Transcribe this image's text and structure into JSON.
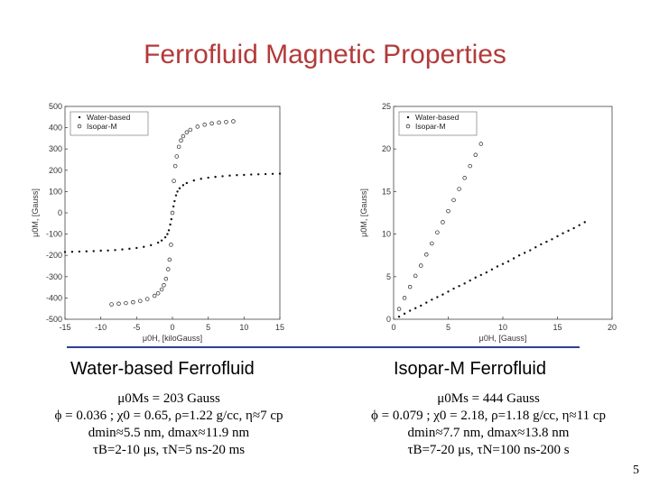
{
  "slide": {
    "title": "Ferrofluid Magnetic Properties",
    "page_number": "5"
  },
  "left": {
    "caption": "Water-based Ferrofluid",
    "params": [
      "μ0Ms = 203 Gauss",
      "ϕ = 0.036 ; χ0 = 0.65, ρ=1.22 g/cc, η≈7 cp",
      "dmin≈5.5 nm, dmax≈11.9 nm",
      "τB=2-10 μs, τN=5 ns-20 ms"
    ]
  },
  "right": {
    "caption": "Isopar-M Ferrofluid",
    "params": [
      "μ0Ms = 444 Gauss",
      "ϕ = 0.079 ; χ0 = 2.18, ρ=1.18 g/cc, η≈11 cp",
      "dmin≈7.7 nm, dmax≈13.8 nm",
      "τB=7-20 μs, τN=100 ns-200 s"
    ]
  },
  "chart_data": [
    {
      "type": "scatter",
      "xlabel": "μ0H, [kiloGauss]",
      "ylabel": "μ0M, [Gauss]",
      "xlim": [
        -15,
        15
      ],
      "ylim": [
        -500,
        500
      ],
      "xticks": [
        "-15",
        "-10",
        "-5",
        "0",
        "5",
        "10",
        "15"
      ],
      "yticks": [
        "500",
        "400",
        "300",
        "200",
        "100",
        "0",
        "-100",
        "-200",
        "-300",
        "-400",
        "-500"
      ],
      "legend": "top-left",
      "series": [
        {
          "name": "Water-based",
          "marker": "dot",
          "x": [
            -15,
            -14,
            -13,
            -12,
            -11,
            -10,
            -9,
            -8,
            -7,
            -6,
            -5,
            -4,
            -3,
            -2,
            -1.5,
            -1,
            -0.7,
            -0.5,
            -0.3,
            -0.15,
            0,
            0.15,
            0.3,
            0.5,
            0.7,
            1,
            1.5,
            2,
            3,
            4,
            5,
            6,
            7,
            8,
            9,
            10,
            11,
            12,
            13,
            14,
            15
          ],
          "y": [
            -184,
            -183,
            -182,
            -181,
            -180,
            -178,
            -177,
            -175,
            -172,
            -169,
            -165,
            -160,
            -152,
            -140,
            -130,
            -115,
            -100,
            -82,
            -55,
            -30,
            0,
            30,
            55,
            82,
            100,
            115,
            130,
            140,
            152,
            160,
            165,
            169,
            172,
            175,
            177,
            178,
            180,
            181,
            182,
            183,
            184
          ]
        },
        {
          "name": "Isopar-M",
          "marker": "circle",
          "x": [
            -8.5,
            -7.5,
            -6.5,
            -5.5,
            -4.5,
            -3.5,
            -2.5,
            -2,
            -1.5,
            -1.2,
            -0.9,
            -0.6,
            -0.4,
            -0.2,
            0,
            0.2,
            0.4,
            0.6,
            0.9,
            1.2,
            1.5,
            2,
            2.5,
            3.5,
            4.5,
            5.5,
            6.5,
            7.5,
            8.5
          ],
          "y": [
            -430,
            -427,
            -424,
            -420,
            -414,
            -405,
            -390,
            -378,
            -360,
            -340,
            -310,
            -265,
            -220,
            -150,
            0,
            150,
            220,
            265,
            310,
            340,
            360,
            378,
            390,
            405,
            414,
            420,
            424,
            427,
            430
          ]
        }
      ]
    },
    {
      "type": "scatter",
      "xlabel": "μ0H, [Gauss]",
      "ylabel": "μ0M, [Gauss]",
      "xlim": [
        0,
        20
      ],
      "ylim": [
        0,
        25
      ],
      "xticks": [
        "0",
        "5",
        "10",
        "15",
        "20"
      ],
      "yticks": [
        "25",
        "20",
        "15",
        "10",
        "5",
        "0"
      ],
      "legend": "top-left",
      "series": [
        {
          "name": "Water-based",
          "marker": "dot",
          "x": [
            0.5,
            1,
            1.5,
            2,
            2.5,
            3,
            3.5,
            4,
            4.5,
            5,
            5.5,
            6,
            6.5,
            7,
            7.5,
            8,
            8.5,
            9,
            9.5,
            10,
            10.5,
            11,
            11.5,
            12,
            12.5,
            13,
            13.5,
            14,
            14.5,
            15,
            15.5,
            16,
            16.5,
            17,
            17.5
          ],
          "y": [
            0.3,
            0.65,
            1.0,
            1.3,
            1.6,
            1.95,
            2.3,
            2.6,
            2.9,
            3.25,
            3.6,
            3.9,
            4.2,
            4.55,
            4.9,
            5.2,
            5.5,
            5.85,
            6.2,
            6.5,
            6.8,
            7.15,
            7.5,
            7.8,
            8.1,
            8.45,
            8.8,
            9.1,
            9.4,
            9.75,
            10.1,
            10.4,
            10.7,
            11.05,
            11.4
          ]
        },
        {
          "name": "Isopar-M",
          "marker": "circle",
          "x": [
            0.5,
            1,
            1.5,
            2,
            2.5,
            3,
            3.5,
            4,
            4.5,
            5,
            5.5,
            6,
            6.5,
            7,
            7.5,
            8
          ],
          "y": [
            1.2,
            2.5,
            3.8,
            5.1,
            6.3,
            7.6,
            8.9,
            10.2,
            11.4,
            12.7,
            14.0,
            15.3,
            16.6,
            18.0,
            19.3,
            20.6
          ]
        }
      ]
    }
  ]
}
